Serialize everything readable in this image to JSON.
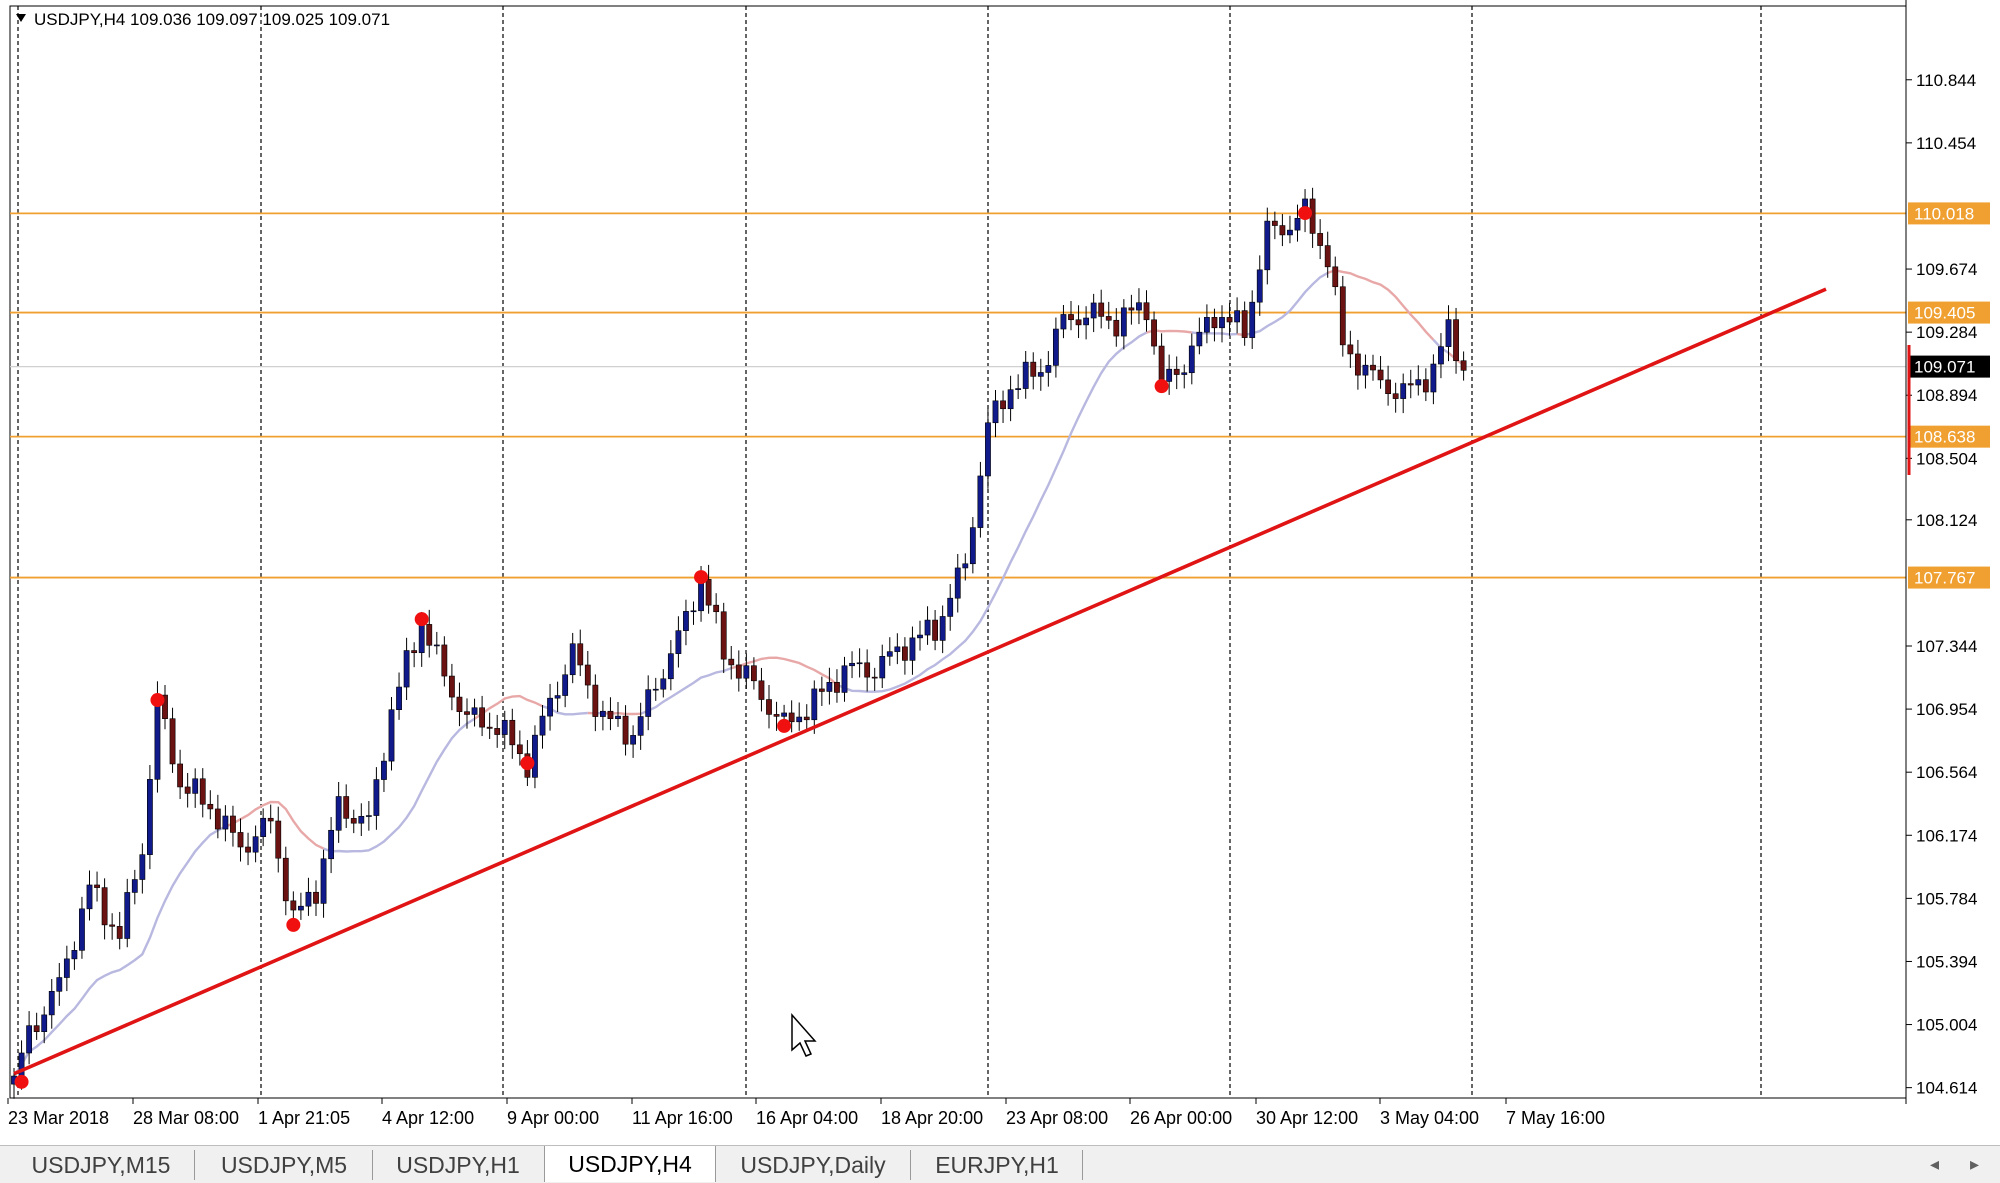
{
  "window": {
    "symbol_info": "USDJPY,H4  109.036 109.097 109.025 109.071"
  },
  "chart_data": {
    "type": "candlestick",
    "symbol": "USDJPY",
    "timeframe": "H4",
    "ohlc_header": {
      "open": 109.036,
      "high": 109.097,
      "low": 109.025,
      "close": 109.071
    },
    "current_price": 109.071,
    "ylim": [
      104.55,
      111.3
    ],
    "y_ticks": [
      "110.844",
      "110.454",
      "109.674",
      "109.284",
      "108.894",
      "108.504",
      "108.124",
      "107.344",
      "106.954",
      "106.564",
      "106.174",
      "105.784",
      "105.394",
      "105.004",
      "104.614"
    ],
    "x_ticks": [
      "23 Mar 2018",
      "28 Mar 08:00",
      "1 Apr 21:05",
      "4 Apr 12:00",
      "9 Apr 00:00",
      "11 Apr 16:00",
      "16 Apr 04:00",
      "18 Apr 20:00",
      "23 Apr 08:00",
      "26 Apr 00:00",
      "30 Apr 12:00",
      "3 May 04:00",
      "7 May 16:00"
    ],
    "horizontal_levels": [
      {
        "price": 110.018,
        "label": "110.018"
      },
      {
        "price": 109.405,
        "label": "109.405"
      },
      {
        "price": 108.638,
        "label": "108.638"
      },
      {
        "price": 107.767,
        "label": "107.767"
      }
    ],
    "trendline": {
      "from": {
        "bar": 0,
        "price": 104.7
      },
      "to": {
        "bar": 240,
        "price": 109.55
      }
    },
    "swing_points": [
      {
        "bar": 1,
        "price": 104.65
      },
      {
        "bar": 19,
        "price": 107.01
      },
      {
        "bar": 37,
        "price": 105.62
      },
      {
        "bar": 54,
        "price": 107.51
      },
      {
        "bar": 68,
        "price": 106.62
      },
      {
        "bar": 91,
        "price": 107.77
      },
      {
        "bar": 102,
        "price": 106.85
      },
      {
        "bar": 152,
        "price": 108.95
      },
      {
        "bar": 171,
        "price": 110.02
      }
    ],
    "waypoints": [
      [
        0,
        104.65
      ],
      [
        2,
        104.95
      ],
      [
        6,
        105.25
      ],
      [
        10,
        105.85
      ],
      [
        14,
        105.55
      ],
      [
        17,
        106.1
      ],
      [
        19,
        107.0
      ],
      [
        22,
        106.5
      ],
      [
        26,
        106.35
      ],
      [
        30,
        106.1
      ],
      [
        34,
        106.25
      ],
      [
        37,
        105.65
      ],
      [
        40,
        105.85
      ],
      [
        43,
        106.35
      ],
      [
        47,
        106.25
      ],
      [
        50,
        106.95
      ],
      [
        54,
        107.5
      ],
      [
        57,
        107.15
      ],
      [
        60,
        106.9
      ],
      [
        64,
        106.85
      ],
      [
        68,
        106.62
      ],
      [
        71,
        107.0
      ],
      [
        74,
        107.3
      ],
      [
        78,
        106.9
      ],
      [
        82,
        106.8
      ],
      [
        86,
        107.2
      ],
      [
        89,
        107.5
      ],
      [
        91,
        107.77
      ],
      [
        94,
        107.3
      ],
      [
        98,
        107.1
      ],
      [
        102,
        106.85
      ],
      [
        106,
        107.0
      ],
      [
        110,
        107.2
      ],
      [
        114,
        107.2
      ],
      [
        118,
        107.35
      ],
      [
        122,
        107.45
      ],
      [
        126,
        107.85
      ],
      [
        129,
        108.7
      ],
      [
        132,
        108.95
      ],
      [
        136,
        109.05
      ],
      [
        139,
        109.35
      ],
      [
        142,
        109.4
      ],
      [
        146,
        109.35
      ],
      [
        150,
        109.45
      ],
      [
        152,
        108.95
      ],
      [
        155,
        109.1
      ],
      [
        159,
        109.4
      ],
      [
        163,
        109.3
      ],
      [
        166,
        109.9
      ],
      [
        169,
        109.95
      ],
      [
        171,
        110.02
      ],
      [
        174,
        109.75
      ],
      [
        176,
        109.2
      ],
      [
        180,
        109.0
      ],
      [
        184,
        108.9
      ],
      [
        188,
        109.05
      ],
      [
        190,
        109.3
      ],
      [
        192,
        109.07
      ]
    ],
    "candle_count": 193,
    "colors": {
      "bull": "#111a8a",
      "bear": "#6b1212",
      "trendline": "#e01414",
      "levels": "#f0a030",
      "ma_blue": "#b8b8e0",
      "ma_red": "#e8a8a8",
      "swing": "#f01010"
    }
  },
  "tabs": [
    {
      "label": "USDJPY,M15"
    },
    {
      "label": "USDJPY,M5"
    },
    {
      "label": "USDJPY,H1"
    },
    {
      "label": "USDJPY,H4"
    },
    {
      "label": "USDJPY,Daily"
    },
    {
      "label": "EURJPY,H1"
    }
  ],
  "tab_scroll": {
    "left": "◂",
    "right": "▸"
  }
}
